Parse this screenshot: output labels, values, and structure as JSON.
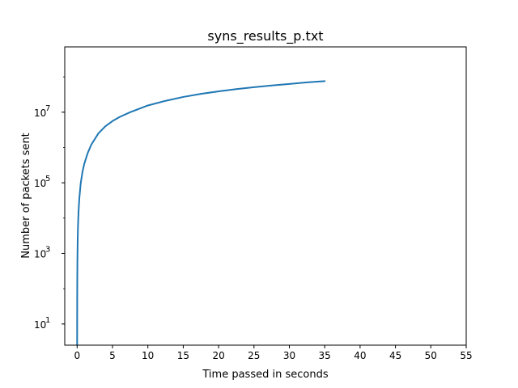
{
  "chart_data": {
    "type": "line",
    "title": "syns_results_p.txt",
    "xlabel": "Time passed in seconds",
    "ylabel": "Number of packets sent",
    "xlim": [
      -1.75,
      55
    ],
    "ylim_log10": [
      0.4,
      8.85
    ],
    "y_scale": "log",
    "grid": false,
    "xticks": [
      0,
      5,
      10,
      15,
      20,
      25,
      30,
      35,
      40,
      45,
      50,
      55
    ],
    "yticks": [
      {
        "base": "10",
        "exp": "1",
        "value": 10
      },
      {
        "base": "10",
        "exp": "3",
        "value": 1000
      },
      {
        "base": "10",
        "exp": "5",
        "value": 100000
      },
      {
        "base": "10",
        "exp": "7",
        "value": 10000000
      }
    ],
    "series": [
      {
        "color": "#1f77b4",
        "x": [
          0,
          0.01,
          0.02,
          0.04,
          0.08,
          0.12,
          0.2,
          0.3,
          0.5,
          0.75,
          1,
          1.5,
          2,
          3,
          4,
          5,
          6,
          7.5,
          10,
          12.5,
          15,
          17.5,
          20,
          22.5,
          25,
          27.5,
          30,
          32.5,
          35
        ],
        "y": [
          1,
          40,
          150,
          600,
          2500,
          5600,
          15000,
          34000,
          95000,
          200000,
          340000,
          700000,
          1200000,
          2500000,
          4000000,
          5600000,
          7300000,
          10000000,
          15500000,
          21000000,
          27000000,
          33000000,
          39000000,
          45000000,
          51000000,
          57000000,
          63000000,
          70000000,
          76000000
        ]
      }
    ]
  }
}
